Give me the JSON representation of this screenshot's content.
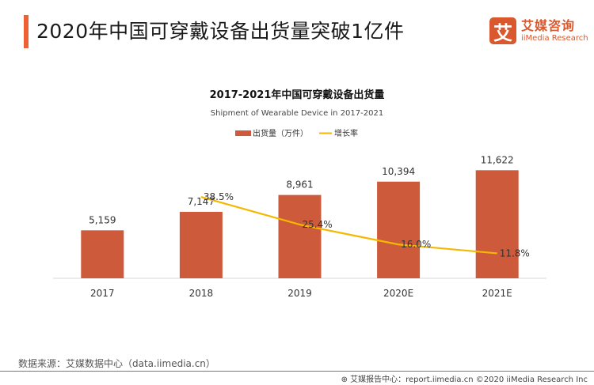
{
  "header": {
    "title": "2020年中国可穿戴设备出货量突破1亿件",
    "logo_mark": "艾",
    "logo_cn": "艾媒咨询",
    "logo_en": "iiMedia Research",
    "accent_color": "#ef6135"
  },
  "chart_data": {
    "type": "bar",
    "title": "2017-2021年中国可穿戴设备出货量",
    "subtitle": "Shipment of Wearable Device in 2017-2021",
    "categories": [
      "2017",
      "2018",
      "2019",
      "2020E",
      "2021E"
    ],
    "series": [
      {
        "name": "出货量（万件）",
        "type": "bar",
        "color": "#cc5a3b",
        "values": [
          5159,
          7147,
          8961,
          10394,
          11622
        ],
        "labels": [
          "5,159",
          "7,147",
          "8,961",
          "10,394",
          "11,622"
        ]
      },
      {
        "name": "增长率",
        "type": "line",
        "color": "#f5b800",
        "values": [
          null,
          38.5,
          25.4,
          16.0,
          11.8
        ],
        "labels": [
          "",
          "38.5%",
          "25.4%",
          "16.0%",
          "11.8%"
        ]
      }
    ],
    "xlabel": "",
    "ylabel": "",
    "ylim": [
      0,
      12500
    ],
    "y2lim": [
      0,
      55
    ],
    "grid": false,
    "legend": "top-center"
  },
  "footer": {
    "source": "数据来源：艾媒数据中心（data.iimedia.cn）",
    "credit": "艾媒报告中心：report.iimedia.cn  ©2020  iiMedia Research  Inc"
  }
}
